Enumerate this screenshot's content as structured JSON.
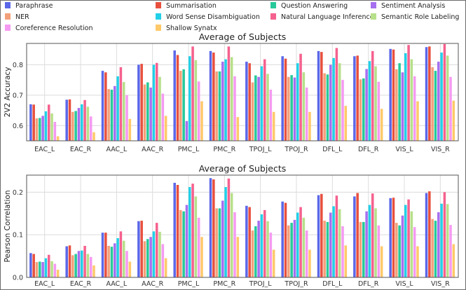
{
  "chart_data": [
    {
      "type": "bar",
      "title": "Average of Subjects",
      "xlabel": "",
      "ylabel": "2V2 Accuracy",
      "ylim": [
        0.55,
        0.87
      ],
      "yticks": [
        0.6,
        0.7,
        0.8
      ],
      "grid": true,
      "categories": [
        "EAC_L",
        "EAC_R",
        "AAC_L",
        "AAC_R",
        "PMC_L",
        "PMC_R",
        "TPOJ_L",
        "TPOJ_R",
        "DFL_L",
        "DFL_R",
        "VIS_L",
        "VIS_R"
      ],
      "series": [
        {
          "name": "Paraphrase",
          "values": [
            0.67,
            0.685,
            0.78,
            0.8,
            0.847,
            0.845,
            0.81,
            0.828,
            0.845,
            0.828,
            0.852,
            0.858
          ]
        },
        {
          "name": "Summarisation",
          "values": [
            0.669,
            0.686,
            0.775,
            0.803,
            0.832,
            0.84,
            0.805,
            0.82,
            0.842,
            0.83,
            0.85,
            0.86
          ]
        },
        {
          "name": "NER",
          "values": [
            0.624,
            0.645,
            0.72,
            0.735,
            0.78,
            0.778,
            0.742,
            0.76,
            0.772,
            0.752,
            0.785,
            0.792
          ]
        },
        {
          "name": "Question Answering",
          "values": [
            0.625,
            0.648,
            0.718,
            0.742,
            0.785,
            0.778,
            0.765,
            0.766,
            0.768,
            0.755,
            0.805,
            0.78
          ]
        },
        {
          "name": "Sentiment Analysis",
          "values": [
            0.632,
            0.658,
            0.73,
            0.725,
            0.615,
            0.81,
            0.76,
            0.758,
            0.8,
            0.786,
            0.775,
            0.81
          ]
        },
        {
          "name": "Word Sense Disambiguation",
          "values": [
            0.647,
            0.67,
            0.762,
            0.8,
            0.828,
            0.818,
            0.795,
            0.805,
            0.822,
            0.812,
            0.838,
            0.84
          ]
        },
        {
          "name": "Natural Language Inference",
          "values": [
            0.669,
            0.684,
            0.792,
            0.806,
            0.86,
            0.86,
            0.818,
            0.836,
            0.855,
            0.845,
            0.865,
            0.868
          ]
        },
        {
          "name": "Semantic Role Labeling",
          "values": [
            0.64,
            0.662,
            0.743,
            0.76,
            0.815,
            0.825,
            0.77,
            0.775,
            0.805,
            0.795,
            0.818,
            0.83
          ]
        },
        {
          "name": "Coreference Resolution",
          "values": [
            0.612,
            0.63,
            0.7,
            0.705,
            0.745,
            0.762,
            0.718,
            0.725,
            0.75,
            0.744,
            0.762,
            0.76
          ]
        },
        {
          "name": "Shallow Synatx",
          "values": [
            0.565,
            0.578,
            0.622,
            0.632,
            0.68,
            0.628,
            0.645,
            0.645,
            0.665,
            0.655,
            0.68,
            0.682
          ]
        }
      ]
    },
    {
      "type": "bar",
      "title": "Average of Subjects",
      "xlabel": "",
      "ylabel": "Pearson Correlation",
      "ylim": [
        0.0,
        0.24
      ],
      "yticks": [
        0.0,
        0.1,
        0.2
      ],
      "grid": true,
      "categories": [
        "EAC_L",
        "EAC_R",
        "AAC_L",
        "AAC_R",
        "PMC_L",
        "PMC_R",
        "TPOJ_L",
        "TPOJ_R",
        "DFL_L",
        "DFL_R",
        "VIS_L",
        "VIS_R"
      ],
      "series": [
        {
          "name": "Paraphrase",
          "values": [
            0.057,
            0.073,
            0.105,
            0.132,
            0.222,
            0.233,
            0.168,
            0.178,
            0.193,
            0.19,
            0.186,
            0.198
          ]
        },
        {
          "name": "Summarisation",
          "values": [
            0.055,
            0.075,
            0.105,
            0.133,
            0.217,
            0.23,
            0.165,
            0.175,
            0.196,
            0.198,
            0.187,
            0.202
          ]
        },
        {
          "name": "NER",
          "values": [
            0.036,
            0.052,
            0.074,
            0.085,
            0.158,
            0.162,
            0.11,
            0.122,
            0.133,
            0.13,
            0.128,
            0.137
          ]
        },
        {
          "name": "Question Answering",
          "values": [
            0.037,
            0.055,
            0.072,
            0.09,
            0.155,
            0.162,
            0.12,
            0.128,
            0.13,
            0.13,
            0.122,
            0.133
          ]
        },
        {
          "name": "Sentiment Analysis",
          "values": [
            0.036,
            0.062,
            0.08,
            0.095,
            0.17,
            0.18,
            0.133,
            0.135,
            0.152,
            0.155,
            0.145,
            0.153
          ]
        },
        {
          "name": "Word Sense Disambiguation",
          "values": [
            0.045,
            0.063,
            0.092,
            0.108,
            0.212,
            0.212,
            0.148,
            0.152,
            0.167,
            0.17,
            0.17,
            0.173
          ]
        },
        {
          "name": "Natural Language Inference",
          "values": [
            0.053,
            0.074,
            0.108,
            0.128,
            0.22,
            0.232,
            0.158,
            0.165,
            0.192,
            0.197,
            0.183,
            0.2
          ]
        },
        {
          "name": "Semantic Role Labeling",
          "values": [
            0.038,
            0.055,
            0.086,
            0.107,
            0.19,
            0.198,
            0.132,
            0.14,
            0.16,
            0.162,
            0.155,
            0.172
          ]
        },
        {
          "name": "Coreference Resolution",
          "values": [
            0.032,
            0.048,
            0.062,
            0.078,
            0.14,
            0.153,
            0.105,
            0.11,
            0.12,
            0.122,
            0.118,
            0.123
          ]
        },
        {
          "name": "Shallow Synatx",
          "values": [
            0.018,
            0.028,
            0.037,
            0.045,
            0.095,
            0.095,
            0.065,
            0.065,
            0.075,
            0.073,
            0.073,
            0.078
          ]
        }
      ]
    }
  ],
  "colors": {
    "Paraphrase": "#5b67e8",
    "Summarisation": "#e8503e",
    "NER": "#f3a07a",
    "Question Answering": "#27c99a",
    "Sentiment Analysis": "#a66ff0",
    "Word Sense Disambiguation": "#22d0e8",
    "Natural Language Inference": "#f5618e",
    "Semantic Role Labeling": "#b7e08a",
    "Coreference Resolution": "#f59af2",
    "Shallow Synatx": "#fec96a"
  },
  "legend": {
    "position": "top",
    "order": [
      "Paraphrase",
      "Summarisation",
      "Question Answering",
      "Sentiment Analysis",
      "NER",
      "Word Sense Disambiguation",
      "Natural Language Inference",
      "Semantic Role Labeling",
      "Coreference Resolution",
      "Shallow Synatx"
    ]
  }
}
